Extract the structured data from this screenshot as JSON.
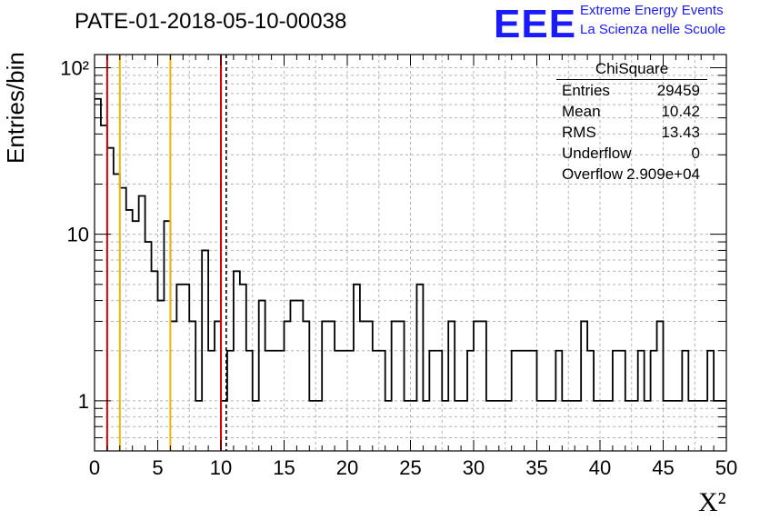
{
  "title": "PATE-01-2018-05-10-00038",
  "logo": {
    "mark": "EEE",
    "line1": "Extreme Energy Events",
    "line2": "La Scienza nelle Scuole",
    "color": "#1a1aff"
  },
  "stats": {
    "title": "ChiSquare",
    "rows": [
      {
        "key": "Entries",
        "value": "29459"
      },
      {
        "key": "Mean",
        "value": "10.42"
      },
      {
        "key": "RMS",
        "value": "13.43"
      },
      {
        "key": "Underflow",
        "value": "0"
      },
      {
        "key": "Overflow",
        "value": "2.909e+04"
      }
    ]
  },
  "chart_data": {
    "type": "histogram",
    "title": "PATE-01-2018-05-10-00038",
    "xlabel": "X²",
    "ylabel": "Entries/bin",
    "xlim": [
      0,
      50
    ],
    "ylim": [
      0.5,
      120
    ],
    "yscale": "log",
    "grid": true,
    "bin_width": 0.5,
    "bin_start": 0,
    "x_ticks": [
      0,
      5,
      10,
      15,
      20,
      25,
      30,
      35,
      40,
      45,
      50
    ],
    "y_ticks": [
      {
        "value": 1,
        "label": "1"
      },
      {
        "value": 10,
        "label": "10"
      },
      {
        "value": 100,
        "label": "10²"
      }
    ],
    "values": [
      65,
      45,
      33,
      23,
      19,
      14,
      12,
      17,
      9,
      6,
      4,
      12,
      3,
      5,
      5,
      3,
      1,
      8,
      2,
      3,
      1,
      2,
      6,
      5,
      2,
      1,
      4,
      2,
      2,
      2,
      3,
      4,
      4,
      3,
      1,
      1,
      3,
      3,
      2,
      2,
      2,
      5,
      3,
      3,
      2,
      2,
      1,
      3,
      3,
      1,
      1,
      5,
      1,
      2,
      2,
      1,
      3,
      1,
      1,
      2,
      3,
      3,
      1,
      1,
      1,
      1,
      2,
      2,
      2,
      2,
      1,
      1,
      1,
      2,
      1,
      1,
      1,
      3,
      2,
      1,
      1,
      1,
      2,
      2,
      1,
      1,
      2,
      1,
      2,
      3,
      1,
      1,
      1,
      2,
      1,
      1,
      1,
      2,
      1,
      1
    ],
    "reference_lines": [
      {
        "x": 1,
        "color": "#dd0000",
        "style": "solid"
      },
      {
        "x": 2,
        "color": "#f0b400",
        "style": "solid"
      },
      {
        "x": 6,
        "color": "#f0b400",
        "style": "solid"
      },
      {
        "x": 10,
        "color": "#dd0000",
        "style": "solid"
      },
      {
        "x": 10.42,
        "color": "#000000",
        "style": "dashed"
      }
    ]
  }
}
